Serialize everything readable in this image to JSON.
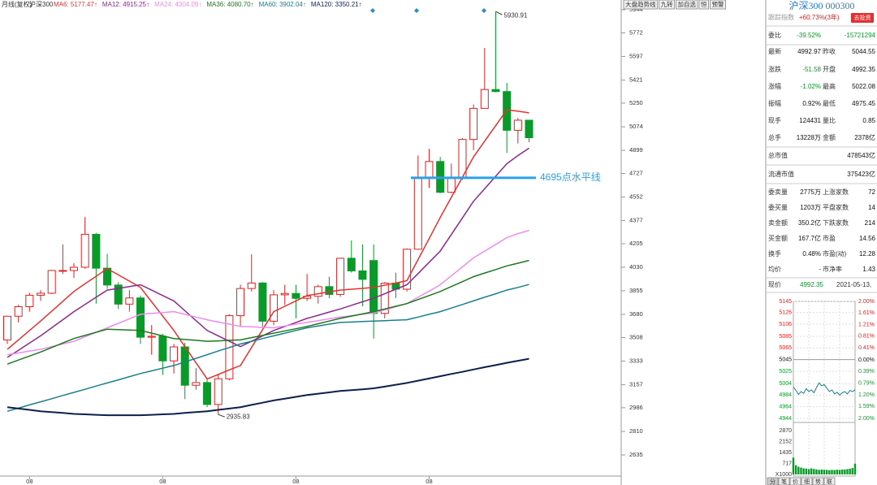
{
  "header": {
    "mode": "月线(复权)",
    "symbol": "沪深300"
  },
  "chart_data": {
    "type": "candlestick",
    "categories": [
      null,
      null,
      "08",
      null,
      null,
      null,
      null,
      null,
      null,
      null,
      null,
      null,
      null,
      null,
      "08",
      null,
      null,
      null,
      null,
      null,
      null,
      null,
      null,
      null,
      null,
      null,
      "08",
      null,
      null,
      null,
      null,
      null,
      null,
      null,
      null,
      null,
      null,
      null,
      "08",
      null,
      null,
      null,
      null,
      null,
      null,
      null,
      null,
      null
    ],
    "open": [
      3490,
      3666,
      3737,
      3822,
      3837,
      4006,
      4006,
      4030,
      4275,
      4023,
      3898,
      3756,
      3802,
      3510,
      3517,
      3334,
      3438,
      3153,
      3173,
      3010,
      3201,
      3670,
      3872,
      3913,
      3629,
      3825,
      3835,
      3799,
      3814,
      3886,
      3828,
      4097,
      4003,
      4080,
      3687,
      3912,
      3867,
      4164,
      4695,
      4816,
      4587,
      4695,
      4980,
      5211,
      5351,
      5336,
      5048,
      5123
    ],
    "high": [
      3670,
      3750,
      3840,
      3860,
      4010,
      4200,
      4060,
      4403,
      4285,
      4130,
      3920,
      3860,
      3820,
      3600,
      3535,
      3460,
      3470,
      3280,
      3200,
      3230,
      3680,
      3900,
      4127,
      3920,
      3860,
      3900,
      3900,
      3980,
      3900,
      3960,
      4100,
      4230,
      4200,
      4200,
      3920,
      3990,
      4170,
      4860,
      4910,
      4850,
      4800,
      4990,
      5240,
      5660,
      5930.91,
      5400,
      5140,
      5123
    ],
    "low": [
      3460,
      3620,
      3700,
      3780,
      3830,
      3980,
      3950,
      4020,
      3760,
      3870,
      3720,
      3700,
      3460,
      3380,
      3230,
      3240,
      3050,
      3120,
      2990,
      2935.83,
      3190,
      3590,
      3850,
      3580,
      3600,
      3750,
      3650,
      3780,
      3760,
      3800,
      3810,
      3990,
      3740,
      3500,
      3650,
      3800,
      3850,
      4160,
      4620,
      4580,
      4580,
      4680,
      4900,
      5210,
      5330,
      4880,
      4950,
      4960
    ],
    "close": [
      3666,
      3737,
      3822,
      3837,
      4006,
      4006,
      4030,
      4275,
      4023,
      3898,
      3756,
      3802,
      3510,
      3517,
      3334,
      3438,
      3153,
      3173,
      3010,
      3201,
      3670,
      3872,
      3913,
      3629,
      3825,
      3835,
      3799,
      3814,
      3886,
      3828,
      4097,
      4003,
      3940,
      3687,
      3912,
      3867,
      4164,
      4695,
      4816,
      4587,
      4695,
      4980,
      5211,
      5351,
      5336,
      5048,
      5123,
      4993
    ],
    "up_color": "#e02020",
    "down_color": "#0a9a2a",
    "ylim": [
      2635,
      5944
    ],
    "yticks": [
      5944,
      5772,
      5597,
      5421,
      5250,
      5074,
      4899,
      4727,
      4552,
      4377,
      4205,
      4030,
      3855,
      3680,
      3508,
      3333,
      3157,
      2986,
      2810,
      2635
    ],
    "grid": true,
    "high_mark": 5930.91,
    "low_mark": 2935.83,
    "hline": {
      "value": 4695,
      "label": "4695点水平线",
      "color": "#2aa0e8"
    },
    "series": [
      {
        "legend": "MA6: 5177.47↑",
        "color": "#e8312f",
        "values": [
          3420,
          3490,
          3560,
          3630,
          3703,
          3777,
          3850,
          3907,
          3963,
          4020,
          3973,
          3927,
          3880,
          3773,
          3667,
          3560,
          3440,
          3320,
          3200,
          3233,
          3267,
          3300,
          3433,
          3567,
          3700,
          3740,
          3780,
          3820,
          3833,
          3847,
          3860,
          3867,
          3873,
          3880,
          3897,
          3913,
          3930,
          4087,
          4243,
          4400,
          4550,
          4700,
          4850,
          4967,
          5083,
          5200,
          5190,
          5177.47
        ]
      },
      {
        "legend": "MA12: 4915.25↑",
        "color": "#8b2a8b",
        "values": [
          3360,
          3413,
          3467,
          3520,
          3580,
          3640,
          3700,
          3753,
          3807,
          3860,
          3873,
          3887,
          3900,
          3860,
          3820,
          3780,
          3707,
          3633,
          3560,
          3520,
          3480,
          3440,
          3480,
          3520,
          3560,
          3590,
          3620,
          3650,
          3673,
          3697,
          3720,
          3747,
          3773,
          3800,
          3833,
          3867,
          3900,
          3983,
          4067,
          4150,
          4273,
          4397,
          4520,
          4613,
          4707,
          4800,
          4860,
          4915.25
        ]
      },
      {
        "legend": "MA24: 4304.09↑",
        "color": "#f08cf0",
        "values": [
          3380,
          3393,
          3407,
          3420,
          3440,
          3460,
          3480,
          3513,
          3547,
          3580,
          3613,
          3647,
          3680,
          3687,
          3693,
          3700,
          3680,
          3660,
          3640,
          3623,
          3607,
          3590,
          3587,
          3583,
          3580,
          3593,
          3607,
          3620,
          3633,
          3647,
          3660,
          3670,
          3680,
          3690,
          3713,
          3737,
          3760,
          3807,
          3853,
          3900,
          3967,
          4033,
          4100,
          4150,
          4200,
          4250,
          4280,
          4304.09
        ]
      },
      {
        "legend": "MA36: 4080.70↑",
        "color": "#1d7a1d",
        "values": [
          3310,
          3340,
          3370,
          3400,
          3433,
          3467,
          3500,
          3523,
          3547,
          3570,
          3567,
          3563,
          3560,
          3540,
          3520,
          3500,
          3493,
          3487,
          3480,
          3483,
          3487,
          3490,
          3507,
          3523,
          3540,
          3557,
          3573,
          3590,
          3610,
          3630,
          3650,
          3667,
          3683,
          3700,
          3720,
          3740,
          3760,
          3790,
          3820,
          3850,
          3887,
          3923,
          3960,
          3987,
          4013,
          4040,
          4060,
          4080.7
        ]
      },
      {
        "legend": "MA60: 3902.04↑",
        "color": "#1a7f8c",
        "values": [
          2960,
          2983,
          3007,
          3030,
          3053,
          3077,
          3100,
          3123,
          3147,
          3170,
          3193,
          3217,
          3240,
          3260,
          3280,
          3300,
          3327,
          3353,
          3380,
          3407,
          3433,
          3460,
          3480,
          3500,
          3520,
          3540,
          3560,
          3580,
          3593,
          3607,
          3620,
          3623,
          3627,
          3630,
          3633,
          3637,
          3640,
          3660,
          3680,
          3700,
          3727,
          3753,
          3780,
          3807,
          3833,
          3860,
          3880,
          3902.04
        ]
      },
      {
        "legend": "MA120: 3350.21↑",
        "color": "#0d1f4d",
        "values": [
          2990,
          2980,
          2970,
          2960,
          2953,
          2947,
          2940,
          2937,
          2933,
          2930,
          2930,
          2930,
          2930,
          2933,
          2937,
          2940,
          2947,
          2953,
          2960,
          2970,
          2980,
          2990,
          3007,
          3023,
          3040,
          3053,
          3067,
          3080,
          3090,
          3100,
          3110,
          3117,
          3123,
          3130,
          3143,
          3157,
          3170,
          3187,
          3203,
          3220,
          3237,
          3253,
          3270,
          3287,
          3303,
          3320,
          3335,
          3350.21
        ]
      }
    ]
  },
  "panel": {
    "tabs": [
      "大盘趋势线",
      "九转",
      "加自选",
      "恒",
      "预警"
    ],
    "title": "沪深300 000300",
    "tracking": {
      "label": "跟踪指数",
      "value": "+60.73%(3年)",
      "button": "去投资"
    },
    "rows": [
      [
        "委比",
        "-39.52%",
        "-15721294"
      ],
      [
        "最新",
        "4992.97",
        "昨收",
        "5044.55"
      ],
      [
        "涨跌",
        "-51.58",
        "开盘",
        "4992.35"
      ],
      [
        "涨幅",
        "-1.02%",
        "最高",
        "5022.08"
      ],
      [
        "振幅",
        "0.92%",
        "最低",
        "4975.45"
      ],
      [
        "现手",
        "124431",
        "量比",
        "0.85"
      ],
      [
        "总手",
        "13228万",
        "金额",
        "2378亿"
      ],
      [
        "总市值",
        "478543亿"
      ],
      [
        "流通市值",
        "375423亿"
      ],
      [
        "委卖量",
        "2775万",
        "上涨家数",
        "72"
      ],
      [
        "委买量",
        "1203万",
        "平盘家数",
        "14"
      ],
      [
        "卖金额",
        "350.2亿",
        "下跌家数",
        "214"
      ],
      [
        "买金额",
        "167.7亿",
        "市盈",
        "14.56"
      ],
      [
        "换手",
        "0.48%",
        "市盈(动)",
        "12.28"
      ],
      [
        "均价",
        "-",
        "市净率",
        "1.43"
      ]
    ],
    "bottom_tabs": [
      "分",
      "笔",
      "价",
      "细",
      "势",
      "联"
    ]
  },
  "mini_chart": {
    "type": "line",
    "label": "现价",
    "price": "4992.35",
    "date": "2021-05-13,",
    "ylim": [
      4944,
      5145
    ],
    "yticks": [
      5145,
      5126,
      5106,
      5085,
      5065,
      5045,
      5025,
      5004,
      4984,
      4964,
      4944
    ],
    "y2lim": [
      -2,
      2
    ],
    "y2ticks": [
      {
        "value": 2,
        "label": "2.00%"
      },
      {
        "value": 1.61,
        "label": "1.61%"
      },
      {
        "value": 1.21,
        "label": "1.21%"
      },
      {
        "value": 0.81,
        "label": "0.81%"
      },
      {
        "value": 0.41,
        "label": "0.41%"
      },
      {
        "value": 0,
        "label": "0.00%"
      },
      {
        "value": -0.39,
        "label": "0.39%"
      },
      {
        "value": -0.79,
        "label": "0.79%"
      },
      {
        "value": -1.2,
        "label": "1.20%"
      },
      {
        "value": -1.59,
        "label": "1.59%"
      },
      {
        "value": -2,
        "label": "2.00%"
      }
    ],
    "color": "#1a7f8c",
    "values": [
      4998,
      4992,
      4985,
      4990,
      4987,
      4995,
      4990,
      4993,
      4988,
      4997,
      5005,
      5000,
      5002,
      4996,
      4990,
      4993,
      4986,
      4989,
      4984,
      4988,
      4990,
      4986,
      4992,
      4990,
      4993
    ],
    "volume_ticks": [
      2870,
      2152,
      1435,
      717,
      {
        "value": 0,
        "label": "X1000"
      }
    ],
    "volume_lim": [
      0,
      2870
    ],
    "volume_color": "#0a9a2a",
    "volume": [
      1100,
      600,
      500,
      450,
      400,
      380,
      350,
      400,
      360,
      330,
      300,
      320,
      310,
      300,
      280,
      300,
      290,
      310,
      300,
      320,
      330,
      350,
      380,
      420,
      700
    ]
  }
}
